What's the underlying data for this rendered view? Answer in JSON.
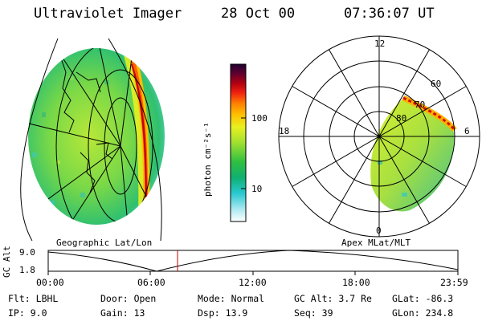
{
  "header": {
    "title": "Ultraviolet Imager",
    "date": "28 Oct 00",
    "time": "07:36:07 UT"
  },
  "colorbar": {
    "label": "photon cm⁻²s⁻¹",
    "ticks": [
      "100",
      "10"
    ],
    "gradient": [
      "#ffffff",
      "#a8e8f0",
      "#28c8d0",
      "#10b070",
      "#30c040",
      "#a0e030",
      "#e8f020",
      "#ffc000",
      "#ff8000",
      "#f02010",
      "#b00010",
      "#600030",
      "#200030"
    ]
  },
  "left_panel": {
    "caption": "Geographic Lat/Lon"
  },
  "right_panel": {
    "caption": "Apex MLat/MLT",
    "mlt_labels": {
      "top": "12",
      "left": "18",
      "right": "6",
      "bottom": "0"
    },
    "lat_labels": [
      "60",
      "70",
      "80"
    ]
  },
  "altitude_plot": {
    "ylabel": "GC Alt",
    "yticks": [
      "9.0",
      "1.8"
    ],
    "xticks": [
      "00:00",
      "06:00",
      "12:00",
      "18:00",
      "23:59"
    ],
    "marker_color": "#c00000"
  },
  "info": {
    "flt": {
      "label": "Flt:",
      "value": "LBHL"
    },
    "ip": {
      "label": "IP:",
      "value": "9.0"
    },
    "door": {
      "label": "Door:",
      "value": "Open"
    },
    "gain": {
      "label": "Gain:",
      "value": "13"
    },
    "mode": {
      "label": "Mode:",
      "value": "Normal"
    },
    "dsp": {
      "label": "Dsp:",
      "value": "13.9"
    },
    "gcalt": {
      "label": "GC Alt:",
      "value": "3.7 Re"
    },
    "seq": {
      "label": "Seq:",
      "value": "39"
    },
    "glat": {
      "label": "GLat:",
      "value": "-86.3"
    },
    "glon": {
      "label": "GLon:",
      "value": "234.8"
    }
  }
}
